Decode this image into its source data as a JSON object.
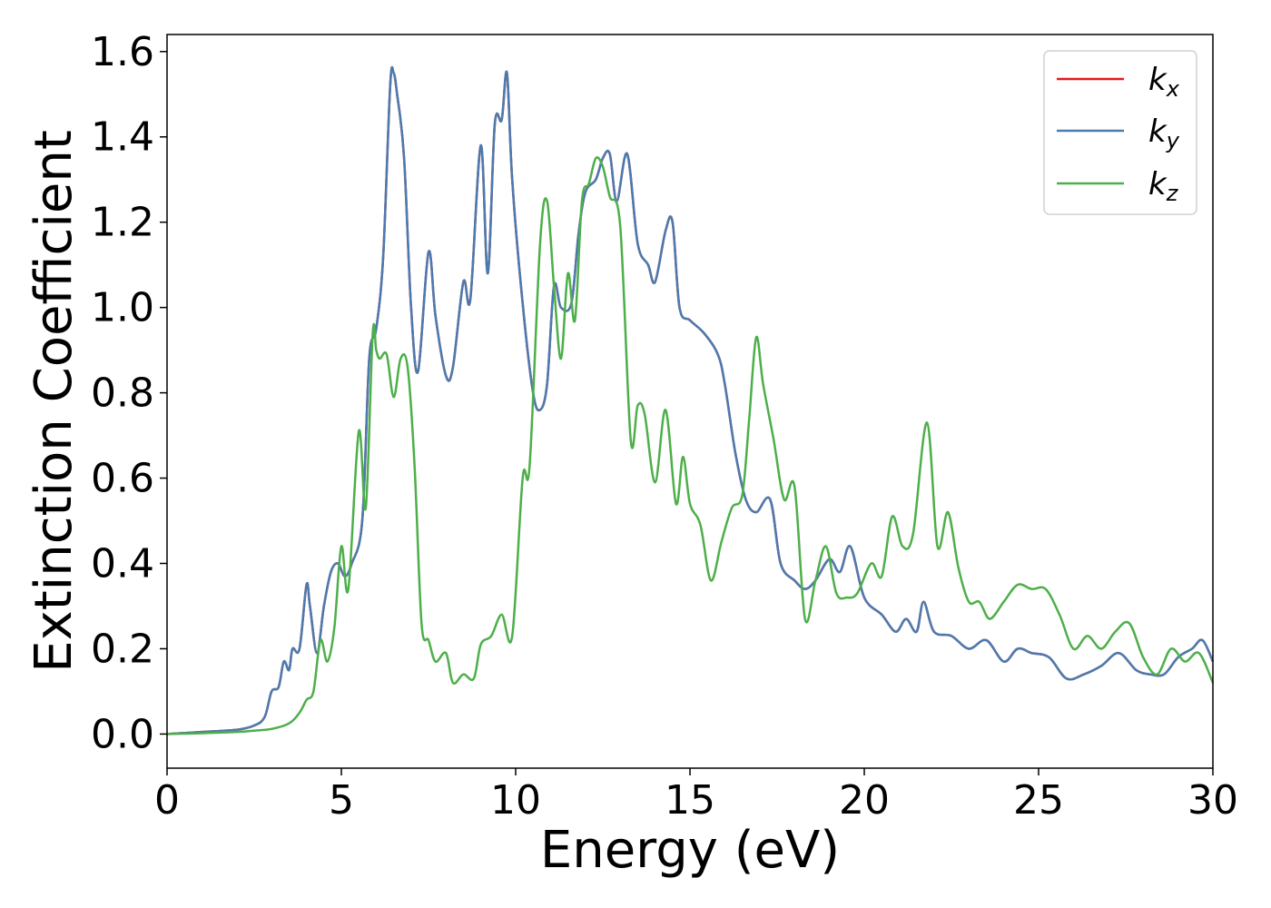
{
  "chart_data": {
    "type": "line",
    "xlabel": "Energy (eV)",
    "ylabel": "Extinction Coefficient",
    "xlim": [
      0,
      30
    ],
    "ylim": [
      -0.08,
      1.64
    ],
    "xticks": [
      0,
      5,
      10,
      15,
      20,
      25,
      30
    ],
    "yticks": [
      0.0,
      0.2,
      0.4,
      0.6,
      0.8,
      1.0,
      1.2,
      1.4,
      1.6
    ],
    "xtick_labels": [
      "0",
      "5",
      "10",
      "15",
      "20",
      "25",
      "30"
    ],
    "ytick_labels": [
      "0.0",
      "0.2",
      "0.4",
      "0.6",
      "0.8",
      "1.0",
      "1.2",
      "1.4",
      "1.6"
    ],
    "grid": false,
    "legend_position": "top-right",
    "series": [
      {
        "name": "k_x",
        "label_main": "k",
        "label_sub": "x",
        "color": "#e41a1c",
        "x": [
          0,
          1,
          2,
          2.5,
          2.8,
          3.0,
          3.2,
          3.35,
          3.5,
          3.6,
          3.8,
          4.0,
          4.1,
          4.3,
          4.5,
          4.7,
          4.9,
          5.1,
          5.3,
          5.6,
          5.8,
          6.0,
          6.2,
          6.4,
          6.5,
          6.6,
          6.8,
          7.0,
          7.2,
          7.5,
          7.7,
          8.0,
          8.2,
          8.5,
          8.7,
          9.0,
          9.2,
          9.4,
          9.6,
          9.75,
          9.9,
          10.2,
          10.5,
          10.7,
          10.9,
          11.1,
          11.3,
          11.6,
          11.8,
          12.0,
          12.3,
          12.5,
          12.7,
          12.9,
          13.2,
          13.5,
          13.8,
          14.0,
          14.3,
          14.5,
          14.7,
          15.0,
          15.4,
          15.8,
          16.0,
          16.3,
          16.6,
          16.9,
          17.3,
          17.6,
          18.0,
          18.3,
          18.6,
          19.0,
          19.3,
          19.6,
          20.0,
          20.5,
          20.9,
          21.2,
          21.5,
          21.7,
          22.0,
          22.5,
          23.0,
          23.5,
          24.0,
          24.4,
          24.8,
          25.3,
          25.8,
          26.3,
          26.8,
          27.3,
          27.8,
          28.2,
          28.6,
          29.0,
          29.4,
          29.7,
          30.0
        ],
        "values": [
          0.0,
          0.005,
          0.01,
          0.02,
          0.04,
          0.1,
          0.11,
          0.17,
          0.15,
          0.2,
          0.2,
          0.35,
          0.3,
          0.19,
          0.3,
          0.38,
          0.4,
          0.37,
          0.4,
          0.5,
          0.88,
          0.95,
          1.12,
          1.52,
          1.55,
          1.5,
          1.35,
          1.0,
          0.85,
          1.13,
          0.98,
          0.84,
          0.86,
          1.06,
          1.02,
          1.38,
          1.08,
          1.43,
          1.44,
          1.55,
          1.3,
          1.01,
          0.8,
          0.76,
          0.82,
          1.05,
          1.0,
          1.01,
          1.17,
          1.27,
          1.3,
          1.35,
          1.36,
          1.25,
          1.36,
          1.15,
          1.1,
          1.06,
          1.18,
          1.2,
          1.0,
          0.97,
          0.94,
          0.89,
          0.82,
          0.66,
          0.55,
          0.52,
          0.55,
          0.4,
          0.36,
          0.34,
          0.36,
          0.41,
          0.38,
          0.44,
          0.32,
          0.28,
          0.24,
          0.27,
          0.24,
          0.31,
          0.24,
          0.23,
          0.2,
          0.22,
          0.17,
          0.2,
          0.19,
          0.18,
          0.13,
          0.14,
          0.16,
          0.19,
          0.15,
          0.14,
          0.14,
          0.18,
          0.2,
          0.22,
          0.17
        ]
      },
      {
        "name": "k_y",
        "label_main": "k",
        "label_sub": "y",
        "color": "#4a7bb0",
        "x": [
          0,
          1,
          2,
          2.5,
          2.8,
          3.0,
          3.2,
          3.35,
          3.5,
          3.6,
          3.8,
          4.0,
          4.1,
          4.3,
          4.5,
          4.7,
          4.9,
          5.1,
          5.3,
          5.6,
          5.8,
          6.0,
          6.2,
          6.4,
          6.5,
          6.6,
          6.8,
          7.0,
          7.2,
          7.5,
          7.7,
          8.0,
          8.2,
          8.5,
          8.7,
          9.0,
          9.2,
          9.4,
          9.6,
          9.75,
          9.9,
          10.2,
          10.5,
          10.7,
          10.9,
          11.1,
          11.3,
          11.6,
          11.8,
          12.0,
          12.3,
          12.5,
          12.7,
          12.9,
          13.2,
          13.5,
          13.8,
          14.0,
          14.3,
          14.5,
          14.7,
          15.0,
          15.4,
          15.8,
          16.0,
          16.3,
          16.6,
          16.9,
          17.3,
          17.6,
          18.0,
          18.3,
          18.6,
          19.0,
          19.3,
          19.6,
          20.0,
          20.5,
          20.9,
          21.2,
          21.5,
          21.7,
          22.0,
          22.5,
          23.0,
          23.5,
          24.0,
          24.4,
          24.8,
          25.3,
          25.8,
          26.3,
          26.8,
          27.3,
          27.8,
          28.2,
          28.6,
          29.0,
          29.4,
          29.7,
          30.0
        ],
        "values": [
          0.0,
          0.005,
          0.01,
          0.02,
          0.04,
          0.1,
          0.11,
          0.17,
          0.15,
          0.2,
          0.2,
          0.35,
          0.3,
          0.19,
          0.3,
          0.38,
          0.4,
          0.37,
          0.4,
          0.5,
          0.88,
          0.95,
          1.12,
          1.52,
          1.55,
          1.5,
          1.35,
          1.0,
          0.85,
          1.13,
          0.98,
          0.84,
          0.86,
          1.06,
          1.02,
          1.38,
          1.08,
          1.43,
          1.44,
          1.55,
          1.3,
          1.01,
          0.8,
          0.76,
          0.82,
          1.05,
          1.0,
          1.01,
          1.17,
          1.27,
          1.3,
          1.35,
          1.36,
          1.25,
          1.36,
          1.15,
          1.1,
          1.06,
          1.18,
          1.2,
          1.0,
          0.97,
          0.94,
          0.89,
          0.82,
          0.66,
          0.55,
          0.52,
          0.55,
          0.4,
          0.36,
          0.34,
          0.36,
          0.41,
          0.38,
          0.44,
          0.32,
          0.28,
          0.24,
          0.27,
          0.24,
          0.31,
          0.24,
          0.23,
          0.2,
          0.22,
          0.17,
          0.2,
          0.19,
          0.18,
          0.13,
          0.14,
          0.16,
          0.19,
          0.15,
          0.14,
          0.14,
          0.18,
          0.2,
          0.22,
          0.17
        ]
      },
      {
        "name": "k_z",
        "label_main": "k",
        "label_sub": "z",
        "color": "#4daf4a",
        "x": [
          0,
          1,
          2,
          2.5,
          3.0,
          3.5,
          3.8,
          4.0,
          4.2,
          4.4,
          4.6,
          4.8,
          5.0,
          5.2,
          5.5,
          5.7,
          5.9,
          6.0,
          6.1,
          6.3,
          6.5,
          6.7,
          6.9,
          7.1,
          7.3,
          7.5,
          7.7,
          8.0,
          8.2,
          8.5,
          8.8,
          9.0,
          9.3,
          9.6,
          9.9,
          10.2,
          10.4,
          10.7,
          10.9,
          11.1,
          11.3,
          11.5,
          11.7,
          11.9,
          12.1,
          12.3,
          12.5,
          12.7,
          13.0,
          13.3,
          13.5,
          13.7,
          14.0,
          14.3,
          14.6,
          14.8,
          15.0,
          15.3,
          15.6,
          15.9,
          16.2,
          16.5,
          16.7,
          16.9,
          17.1,
          17.4,
          17.7,
          18.0,
          18.3,
          18.6,
          18.9,
          19.2,
          19.5,
          19.8,
          20.2,
          20.5,
          20.8,
          21.1,
          21.4,
          21.8,
          22.1,
          22.4,
          22.7,
          23.0,
          23.3,
          23.6,
          24.0,
          24.4,
          24.8,
          25.2,
          25.6,
          26.0,
          26.4,
          26.8,
          27.2,
          27.6,
          28.0,
          28.4,
          28.8,
          29.2,
          29.6,
          30.0
        ],
        "values": [
          0.0,
          0.002,
          0.005,
          0.008,
          0.012,
          0.025,
          0.05,
          0.08,
          0.1,
          0.22,
          0.17,
          0.25,
          0.44,
          0.34,
          0.71,
          0.53,
          0.94,
          0.9,
          0.88,
          0.89,
          0.79,
          0.88,
          0.86,
          0.63,
          0.26,
          0.22,
          0.17,
          0.19,
          0.12,
          0.14,
          0.13,
          0.21,
          0.23,
          0.28,
          0.23,
          0.6,
          0.63,
          1.15,
          1.25,
          1.05,
          0.88,
          1.08,
          0.97,
          1.25,
          1.29,
          1.35,
          1.33,
          1.26,
          1.19,
          0.69,
          0.77,
          0.75,
          0.59,
          0.76,
          0.54,
          0.65,
          0.54,
          0.49,
          0.36,
          0.45,
          0.53,
          0.56,
          0.74,
          0.93,
          0.82,
          0.69,
          0.55,
          0.58,
          0.27,
          0.36,
          0.44,
          0.33,
          0.32,
          0.33,
          0.4,
          0.37,
          0.51,
          0.44,
          0.47,
          0.73,
          0.44,
          0.52,
          0.39,
          0.31,
          0.31,
          0.27,
          0.31,
          0.35,
          0.34,
          0.34,
          0.28,
          0.2,
          0.23,
          0.2,
          0.24,
          0.26,
          0.18,
          0.14,
          0.2,
          0.17,
          0.19,
          0.12
        ]
      }
    ]
  }
}
